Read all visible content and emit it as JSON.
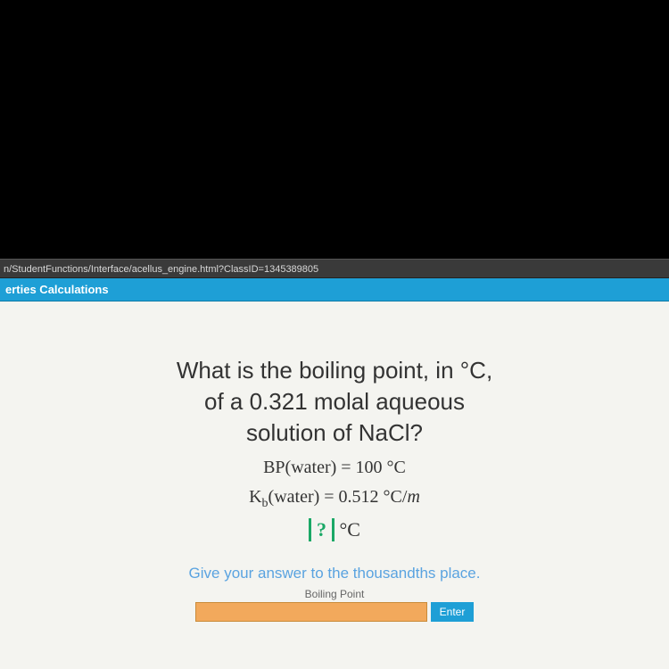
{
  "browser": {
    "url_fragment": "n/StudentFunctions/Interface/acellus_engine.html?ClassID=1345389805"
  },
  "titlebar": {
    "text": "erties Calculations",
    "bg_color": "#1e9fd6"
  },
  "question": {
    "line1": "What is the boiling point, in °C,",
    "line2": "of a 0.321 molal aqueous",
    "line3": "solution of NaCl?",
    "given_bp_label": "BP(water) = 100 °C",
    "given_kb_prefix": "K",
    "given_kb_sub": "b",
    "given_kb_rest": "(water) = 0.512 °C/",
    "given_kb_var": "m",
    "answer_placeholder": "?",
    "answer_unit": " °C"
  },
  "hint": {
    "text": "Give your answer to the thousandths place."
  },
  "input": {
    "label": "Boiling Point",
    "enter_label": "Enter",
    "value": "",
    "field_bg": "#f2a95c"
  },
  "colors": {
    "page_bg": "#f4f4f0",
    "text": "#333333",
    "accent_green": "#1aa866",
    "hint_blue": "#5aa3e0"
  }
}
